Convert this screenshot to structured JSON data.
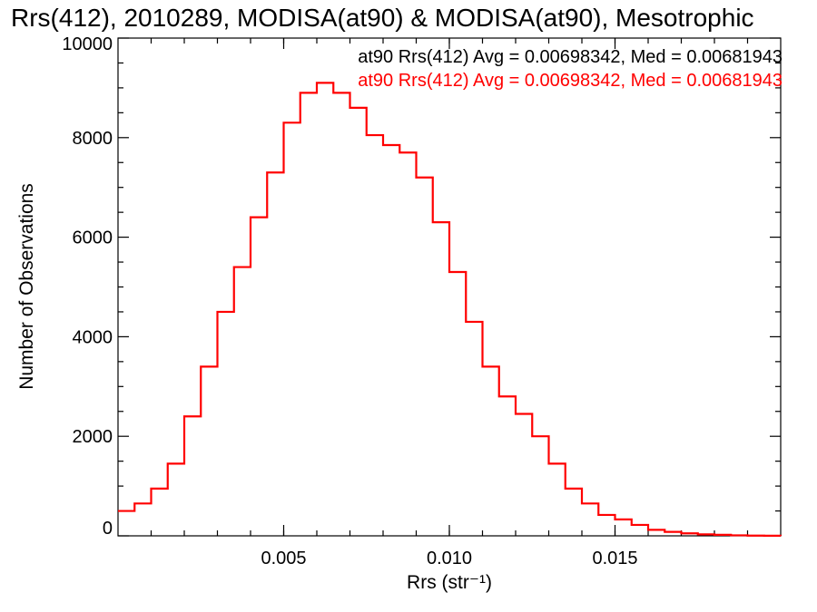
{
  "chart_data": {
    "type": "line",
    "step": true,
    "title": "Rrs(412), 2010289, MODISA(at90) & MODISA(at90), Mesotrophic",
    "xlabel": "Rrs (str⁻¹)",
    "ylabel": "Number of Observations",
    "xlim": [
      0.0,
      0.02
    ],
    "ylim": [
      0,
      10000
    ],
    "x_ticks": [
      0.005,
      0.01,
      0.015
    ],
    "x_tick_labels": [
      "0.005",
      "0.010",
      "0.015"
    ],
    "y_ticks": [
      0,
      2000,
      4000,
      6000,
      8000,
      10000
    ],
    "y_tick_labels": [
      "0",
      "2000",
      "4000",
      "6000",
      "8000",
      "10000"
    ],
    "annotations": [
      {
        "text": "at90 Rrs(412) Avg = 0.00698342, Med = 0.00681943",
        "color": "#000000"
      },
      {
        "text": "at90 Rrs(412) Avg = 0.00698342, Med = 0.00681943",
        "color": "#ff0000"
      }
    ],
    "series": [
      {
        "color": "#ff0000",
        "x": [
          0.0,
          0.0005,
          0.001,
          0.0015,
          0.002,
          0.0025,
          0.003,
          0.0035,
          0.004,
          0.0045,
          0.005,
          0.0055,
          0.006,
          0.0065,
          0.007,
          0.0075,
          0.008,
          0.0085,
          0.009,
          0.0095,
          0.01,
          0.0105,
          0.011,
          0.0115,
          0.012,
          0.0125,
          0.013,
          0.0135,
          0.014,
          0.0145,
          0.015,
          0.0155,
          0.016,
          0.0165,
          0.017,
          0.0175,
          0.018,
          0.0185,
          0.019,
          0.0195,
          0.02
        ],
        "values": [
          500,
          650,
          950,
          1450,
          2400,
          3400,
          4500,
          5400,
          6400,
          7300,
          8300,
          8900,
          9100,
          8900,
          8600,
          8050,
          7850,
          7700,
          7200,
          6300,
          5300,
          4300,
          3400,
          2800,
          2450,
          2000,
          1450,
          950,
          650,
          420,
          330,
          220,
          120,
          80,
          50,
          30,
          20,
          10,
          5,
          2,
          0
        ]
      }
    ]
  }
}
